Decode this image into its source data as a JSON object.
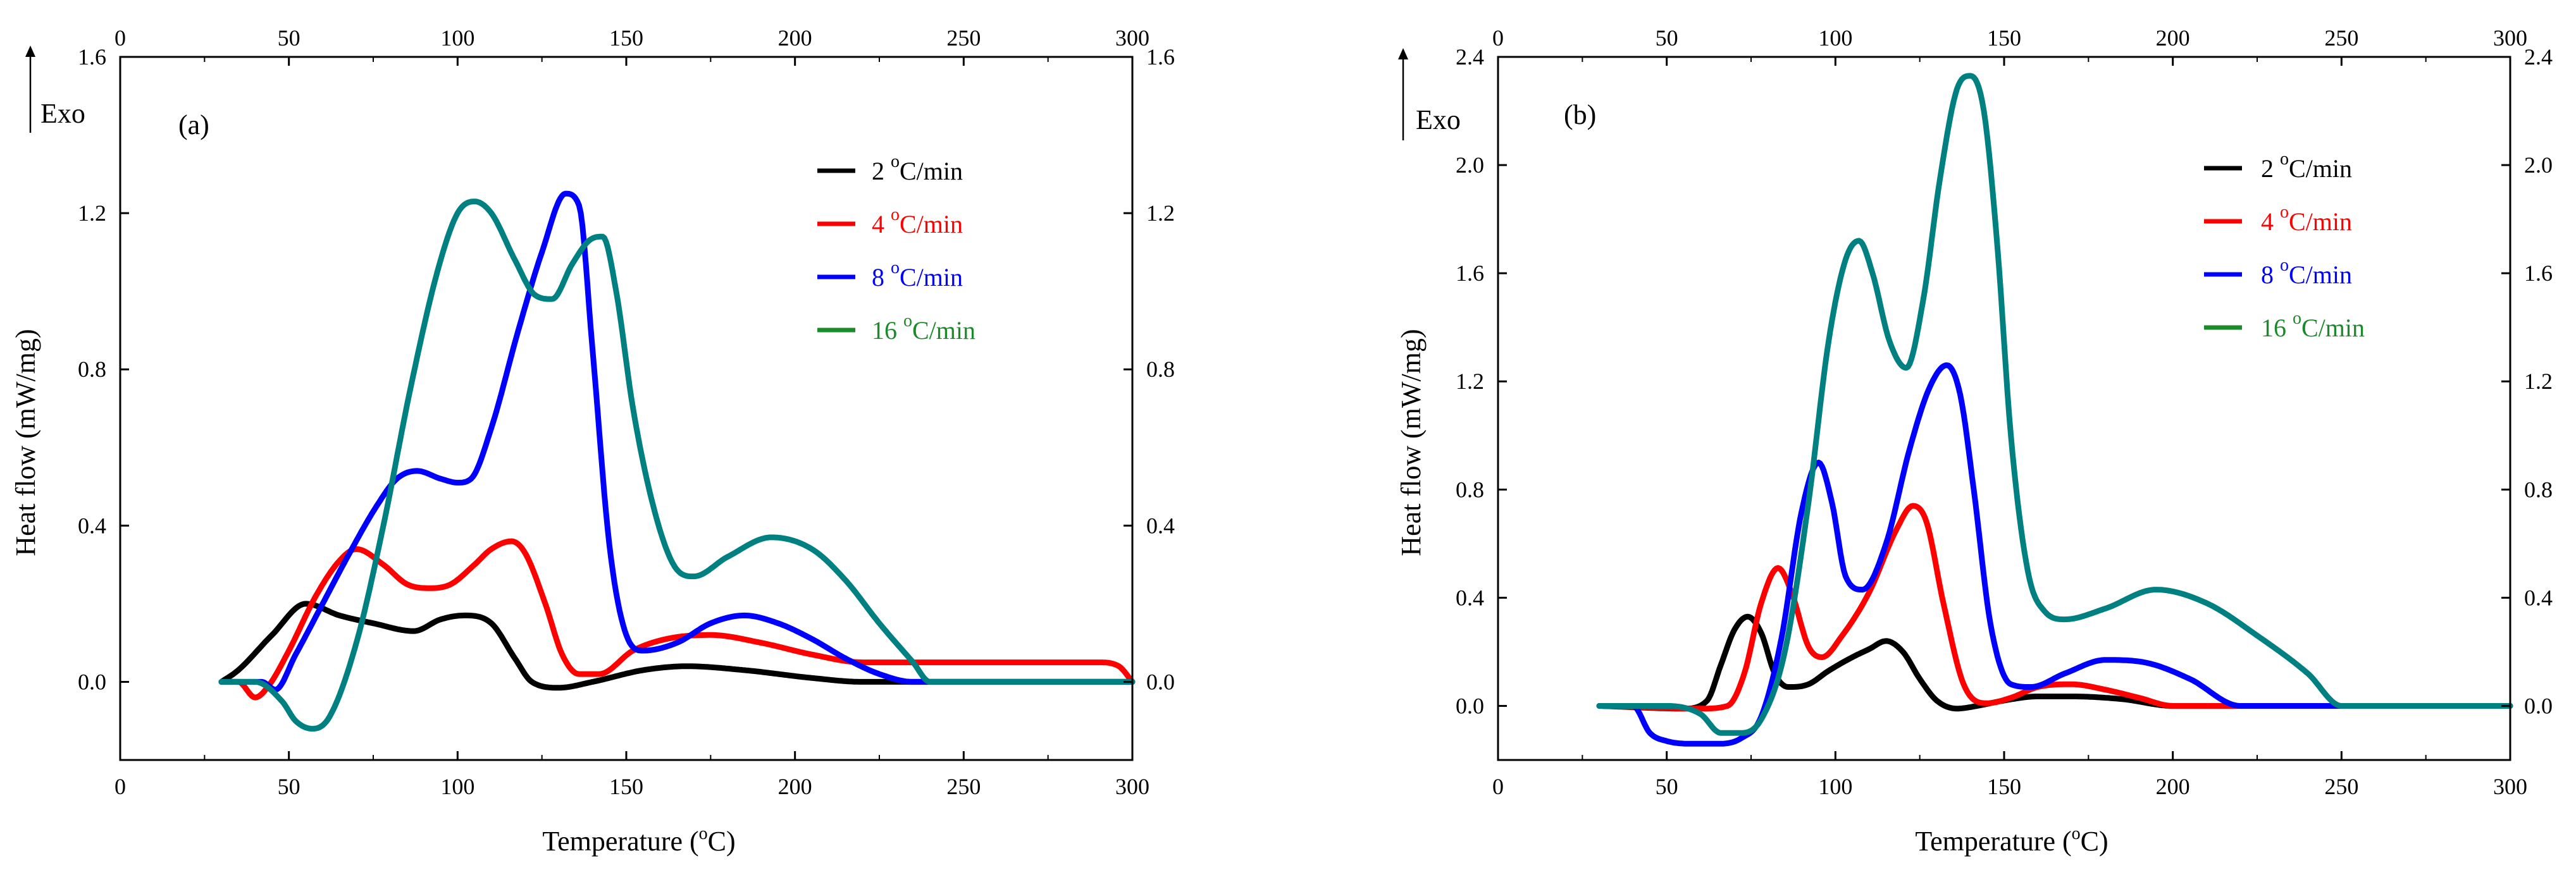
{
  "chart_data": [
    {
      "type": "line",
      "panel_label": "(a)",
      "exo_label": "Exo",
      "xlabel": "Temperature (",
      "xlabel_sup": "o",
      "xlabel_end": "C)",
      "ylabel": "Heat flow (mW/mg)",
      "xlim": [
        0,
        300
      ],
      "ylim": [
        -0.2,
        1.6
      ],
      "xticks": [
        0,
        50,
        100,
        150,
        200,
        250,
        300
      ],
      "yticks": [
        0.0,
        0.4,
        0.8,
        1.2,
        1.6
      ],
      "x_tick_labels": [
        "0",
        "50",
        "100",
        "150",
        "200",
        "250",
        "300"
      ],
      "y_tick_labels": [
        "0.0",
        "0.4",
        "0.8",
        "1.2",
        "1.6"
      ],
      "legend_position": "upper-right",
      "series": [
        {
          "name": "2 oC/min",
          "label_pre": "2 ",
          "label_sup": "o",
          "label_post": "C/min",
          "color": "#000000",
          "x": [
            30,
            35,
            45,
            55,
            65,
            75,
            87,
            95,
            102,
            110,
            117,
            122,
            130,
            140,
            155,
            168,
            185,
            205,
            220,
            300
          ],
          "y": [
            0.0,
            0.03,
            0.12,
            0.2,
            0.17,
            0.15,
            0.13,
            0.16,
            0.17,
            0.15,
            0.06,
            0.0,
            -0.015,
            0.0,
            0.03,
            0.04,
            0.03,
            0.01,
            0.0,
            0.0
          ]
        },
        {
          "name": "4 oC/min",
          "label_pre": "4 ",
          "label_sup": "o",
          "label_post": "C/min",
          "color": "#ff0000",
          "x": [
            30,
            35,
            40,
            44,
            50,
            58,
            65,
            70,
            78,
            85,
            92,
            98,
            105,
            110,
            116,
            120,
            126,
            131,
            136,
            142,
            152,
            162,
            175,
            190,
            205,
            220,
            250,
            270,
            290,
            296,
            300
          ],
          "y": [
            0.0,
            0.0,
            -0.04,
            -0.01,
            0.08,
            0.22,
            0.31,
            0.34,
            0.3,
            0.25,
            0.24,
            0.25,
            0.3,
            0.34,
            0.36,
            0.33,
            0.2,
            0.07,
            0.02,
            0.02,
            0.08,
            0.11,
            0.12,
            0.1,
            0.07,
            0.05,
            0.05,
            0.05,
            0.05,
            0.04,
            0.0
          ]
        },
        {
          "name": "8 oC/min",
          "label_pre": "8 ",
          "label_sup": "o",
          "label_post": "C/min",
          "color": "#0000ff",
          "x": [
            30,
            42,
            46,
            52,
            60,
            68,
            76,
            82,
            88,
            95,
            100,
            104,
            110,
            118,
            125,
            132,
            136,
            140,
            145,
            150,
            155,
            165,
            175,
            185,
            195,
            205,
            215,
            225,
            235,
            240,
            300
          ],
          "y": [
            0.0,
            0.0,
            -0.02,
            0.07,
            0.2,
            0.33,
            0.45,
            0.52,
            0.54,
            0.52,
            0.51,
            0.52,
            0.65,
            0.9,
            1.1,
            1.25,
            1.22,
            0.85,
            0.35,
            0.12,
            0.08,
            0.1,
            0.15,
            0.17,
            0.15,
            0.11,
            0.06,
            0.02,
            0.0,
            0.0,
            0.0
          ]
        },
        {
          "name": "16 oC/min",
          "label_pre": "16 ",
          "label_sup": "o",
          "label_post": "C/min",
          "color": "#008080",
          "legend_color": "#1a8a2a",
          "x": [
            30,
            40,
            48,
            52,
            57,
            62,
            70,
            78,
            86,
            94,
            100,
            105,
            110,
            117,
            123,
            128,
            134,
            139,
            143,
            147,
            152,
            158,
            164,
            170,
            180,
            193,
            205,
            215,
            225,
            235,
            240,
            300
          ],
          "y": [
            0.0,
            0.0,
            -0.05,
            -0.1,
            -0.12,
            -0.09,
            0.1,
            0.4,
            0.75,
            1.05,
            1.2,
            1.23,
            1.2,
            1.08,
            0.99,
            0.98,
            1.07,
            1.13,
            1.14,
            1.0,
            0.7,
            0.45,
            0.3,
            0.27,
            0.32,
            0.37,
            0.34,
            0.26,
            0.15,
            0.05,
            0.0,
            0.0
          ]
        }
      ]
    },
    {
      "type": "line",
      "panel_label": "(b)",
      "exo_label": "Exo",
      "xlabel": "Temperature (",
      "xlabel_sup": "o",
      "xlabel_end": "C)",
      "ylabel": "Heat flow (mW/mg)",
      "xlim": [
        0,
        300
      ],
      "ylim": [
        -0.2,
        2.4
      ],
      "xticks": [
        0,
        50,
        100,
        150,
        200,
        250,
        300
      ],
      "yticks": [
        0.0,
        0.4,
        0.8,
        1.2,
        1.6,
        2.0,
        2.4
      ],
      "x_tick_labels": [
        "0",
        "50",
        "100",
        "150",
        "200",
        "250",
        "300"
      ],
      "y_tick_labels": [
        "0.0",
        "0.4",
        "0.8",
        "1.2",
        "1.6",
        "2.0",
        "2.4"
      ],
      "legend_position": "upper-right",
      "series": [
        {
          "name": "2 oC/min",
          "label_pre": "2 ",
          "label_sup": "o",
          "label_post": "C/min",
          "color": "#000000",
          "x": [
            30,
            55,
            62,
            66,
            70,
            74,
            78,
            82,
            86,
            92,
            98,
            105,
            110,
            115,
            120,
            125,
            130,
            136,
            142,
            150,
            160,
            170,
            185,
            200,
            300
          ],
          "y": [
            0.0,
            -0.01,
            0.02,
            0.15,
            0.28,
            0.33,
            0.27,
            0.12,
            0.07,
            0.08,
            0.13,
            0.18,
            0.21,
            0.24,
            0.2,
            0.1,
            0.02,
            -0.01,
            0.0,
            0.02,
            0.035,
            0.035,
            0.025,
            0.0,
            0.0
          ]
        },
        {
          "name": "4 oC/min",
          "label_pre": "4 ",
          "label_sup": "o",
          "label_post": "C/min",
          "color": "#ff0000",
          "x": [
            30,
            60,
            68,
            73,
            78,
            83,
            87,
            92,
            96,
            102,
            110,
            118,
            123,
            127,
            132,
            138,
            145,
            152,
            160,
            170,
            180,
            190,
            200,
            300
          ],
          "y": [
            0.0,
            -0.01,
            0.0,
            0.12,
            0.38,
            0.51,
            0.42,
            0.22,
            0.18,
            0.26,
            0.42,
            0.65,
            0.74,
            0.68,
            0.38,
            0.08,
            0.01,
            0.03,
            0.07,
            0.08,
            0.06,
            0.03,
            0.0,
            0.0
          ]
        },
        {
          "name": "8 oC/min",
          "label_pre": "8 ",
          "label_sup": "o",
          "label_post": "C/min",
          "color": "#0000ff",
          "x": [
            30,
            40,
            45,
            50,
            58,
            65,
            72,
            78,
            84,
            90,
            95,
            99,
            103,
            108,
            115,
            122,
            128,
            133,
            137,
            141,
            146,
            152,
            158,
            168,
            180,
            192,
            205,
            220,
            300
          ],
          "y": [
            0.0,
            0.0,
            -0.1,
            -0.13,
            -0.14,
            -0.14,
            -0.12,
            -0.04,
            0.25,
            0.72,
            0.9,
            0.75,
            0.48,
            0.43,
            0.6,
            0.95,
            1.18,
            1.26,
            1.15,
            0.8,
            0.3,
            0.08,
            0.07,
            0.12,
            0.17,
            0.16,
            0.1,
            0.0,
            0.0
          ]
        },
        {
          "name": "16 oC/min",
          "label_pre": "16 ",
          "label_sup": "o",
          "label_post": "C/min",
          "color": "#008080",
          "legend_color": "#1a8a2a",
          "x": [
            30,
            50,
            60,
            66,
            72,
            78,
            85,
            92,
            98,
            103,
            107,
            111,
            116,
            121,
            126,
            131,
            136,
            140,
            144,
            148,
            152,
            157,
            162,
            168,
            180,
            195,
            210,
            225,
            240,
            250,
            300
          ],
          "y": [
            0.0,
            0.0,
            -0.03,
            -0.1,
            -0.1,
            -0.05,
            0.2,
            0.75,
            1.35,
            1.65,
            1.72,
            1.6,
            1.35,
            1.25,
            1.5,
            1.95,
            2.28,
            2.33,
            2.2,
            1.7,
            1.0,
            0.5,
            0.35,
            0.32,
            0.36,
            0.43,
            0.38,
            0.26,
            0.12,
            0.0,
            0.0
          ]
        }
      ]
    }
  ]
}
